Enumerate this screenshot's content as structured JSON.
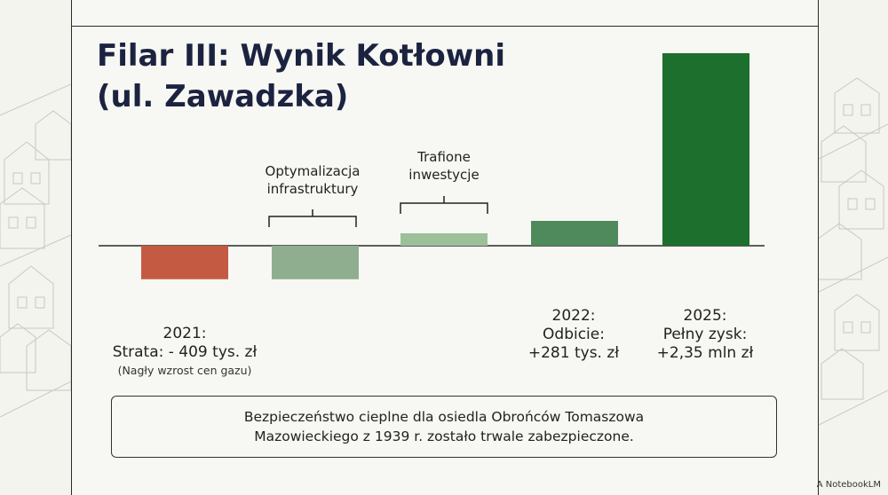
{
  "title_line1": "Filar III: Wynik Kotłowni",
  "title_line2": "(ul. Zawadzka)",
  "annotations": {
    "optimization": [
      "Optymalizacja",
      "infrastruktury"
    ],
    "investments": [
      "Trafione",
      "inwestycje"
    ]
  },
  "labels": {
    "l2021": [
      "2021:",
      "Strata: - 409 tys. zł"
    ],
    "l2021_note": "(Nagły wzrost cen gazu)",
    "l2022": [
      "2022:",
      "Odbicie:",
      "+281 tys. zł"
    ],
    "l2025": [
      "2025:",
      "Pełny zysk:",
      "+2,35 mln zł"
    ]
  },
  "footer": [
    "Bezpieczeństwo cieplne dla osiedla Obrońców Tomaszowa",
    "Mazowieckiego  z 1939 r. zostało trwale zabezpieczone."
  ],
  "brand": "NotebookLM",
  "colors": {
    "loss": "#c55a43",
    "optimization": "#8fae8f",
    "investments": "#9dbf9a",
    "recovery": "#4e8a5c",
    "profit": "#1c6f2c",
    "title": "#1c2340"
  },
  "chart_data": {
    "type": "bar",
    "categories": [
      "2021",
      "Optymalizacja infrastruktury",
      "Trafione inwestycje",
      "2022",
      "2025"
    ],
    "values": [
      -409,
      -409,
      85,
      281,
      2350
    ],
    "units": "tys. zł",
    "series_colors": [
      "#c55a43",
      "#8fae8f",
      "#9dbf9a",
      "#4e8a5c",
      "#1c6f2c"
    ]
  }
}
